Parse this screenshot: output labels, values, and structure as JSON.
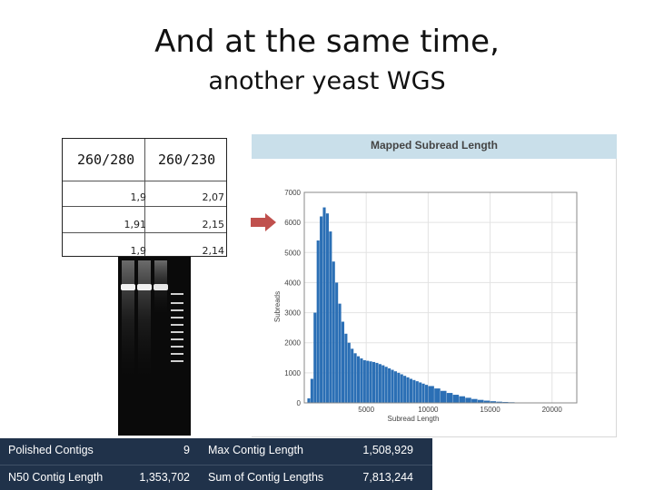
{
  "slide": {
    "title_line1": "And at the same time,",
    "title_line2": "another yeast WGS"
  },
  "purity_table": {
    "headers": [
      "260/280",
      "260/230"
    ],
    "rows": [
      {
        "r260_280": "1,9",
        "r260_230": "2,07"
      },
      {
        "r260_280": "1,91",
        "r260_230": "2,15"
      },
      {
        "r260_280": "1,9",
        "r260_230": "2,14"
      }
    ]
  },
  "chart_data": {
    "type": "bar",
    "title": "Mapped Subread Length",
    "xlabel": "Subread Length",
    "ylabel": "Subreads",
    "xlim": [
      0,
      22000
    ],
    "ylim": [
      0,
      7000
    ],
    "x_ticks": [
      "5000",
      "10000",
      "15000",
      "20000"
    ],
    "y_ticks": [
      "0",
      "1000",
      "2000",
      "3000",
      "4000",
      "5000",
      "6000",
      "7000"
    ],
    "bar_color": "#2b6fb5",
    "grid": true,
    "bin_width": 250,
    "x": [
      0,
      250,
      500,
      750,
      1000,
      1250,
      1500,
      1750,
      2000,
      2250,
      2500,
      2750,
      3000,
      3250,
      3500,
      3750,
      4000,
      4250,
      4500,
      4750,
      5000,
      5250,
      5500,
      5750,
      6000,
      6250,
      6500,
      6750,
      7000,
      7250,
      7500,
      7750,
      8000,
      8250,
      8500,
      8750,
      9000,
      9250,
      9500,
      9750,
      10000,
      10500,
      11000,
      11500,
      12000,
      12500,
      13000,
      13500,
      14000,
      14500,
      15000,
      15500,
      16000,
      16500,
      17000,
      17500,
      18000,
      18500,
      19000,
      19500,
      20000,
      20500
    ],
    "values": [
      0,
      150,
      800,
      3000,
      5400,
      6200,
      6500,
      6300,
      5700,
      4700,
      4000,
      3300,
      2700,
      2300,
      2000,
      1800,
      1650,
      1550,
      1480,
      1420,
      1400,
      1380,
      1360,
      1330,
      1290,
      1250,
      1200,
      1150,
      1100,
      1050,
      1000,
      950,
      900,
      850,
      800,
      760,
      720,
      680,
      640,
      600,
      560,
      480,
      400,
      330,
      270,
      220,
      170,
      130,
      100,
      75,
      55,
      40,
      30,
      22,
      15,
      10,
      7,
      5,
      3,
      2,
      1,
      0
    ]
  },
  "annotation": {
    "arrow_color": "#c0504d"
  },
  "assembly_stats": {
    "rows": [
      {
        "label1": "Polished Contigs",
        "value1": "9",
        "label2": "Max Contig Length",
        "value2": "1,508,929"
      },
      {
        "label1": "N50 Contig Length",
        "value1": "1,353,702",
        "label2": "Sum of Contig Lengths",
        "value2": "7,813,244"
      }
    ]
  }
}
